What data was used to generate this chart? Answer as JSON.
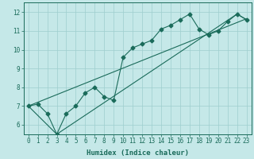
{
  "xlabel": "Humidex (Indice chaleur)",
  "ylabel": "",
  "bg_color": "#c5e8e8",
  "grid_color": "#9ecece",
  "line_color": "#1a6b5a",
  "marker": "D",
  "markersize": 2.5,
  "xlim": [
    -0.5,
    23.5
  ],
  "ylim": [
    5.5,
    12.5
  ],
  "xticks": [
    0,
    1,
    2,
    3,
    4,
    5,
    6,
    7,
    8,
    9,
    10,
    11,
    12,
    13,
    14,
    15,
    16,
    17,
    18,
    19,
    20,
    21,
    22,
    23
  ],
  "yticks": [
    6,
    7,
    8,
    9,
    10,
    11,
    12
  ],
  "line1_x": [
    0,
    1,
    2,
    3,
    4,
    5,
    6,
    7,
    8,
    9,
    10,
    11,
    12,
    13,
    14,
    15,
    16,
    17,
    18,
    19,
    20,
    21,
    22,
    23
  ],
  "line1_y": [
    7.0,
    7.1,
    6.6,
    5.5,
    6.6,
    7.0,
    7.7,
    8.0,
    7.5,
    7.3,
    9.6,
    10.1,
    10.3,
    10.5,
    11.1,
    11.3,
    11.6,
    11.9,
    11.1,
    10.8,
    11.0,
    11.5,
    11.9,
    11.6
  ],
  "line2_x": [
    0,
    3,
    22,
    23
  ],
  "line2_y": [
    7.0,
    5.5,
    11.9,
    11.6
  ],
  "line3_x": [
    0,
    23
  ],
  "line3_y": [
    7.0,
    11.65
  ],
  "xlabel_fontsize": 6.5,
  "tick_fontsize": 5.5
}
